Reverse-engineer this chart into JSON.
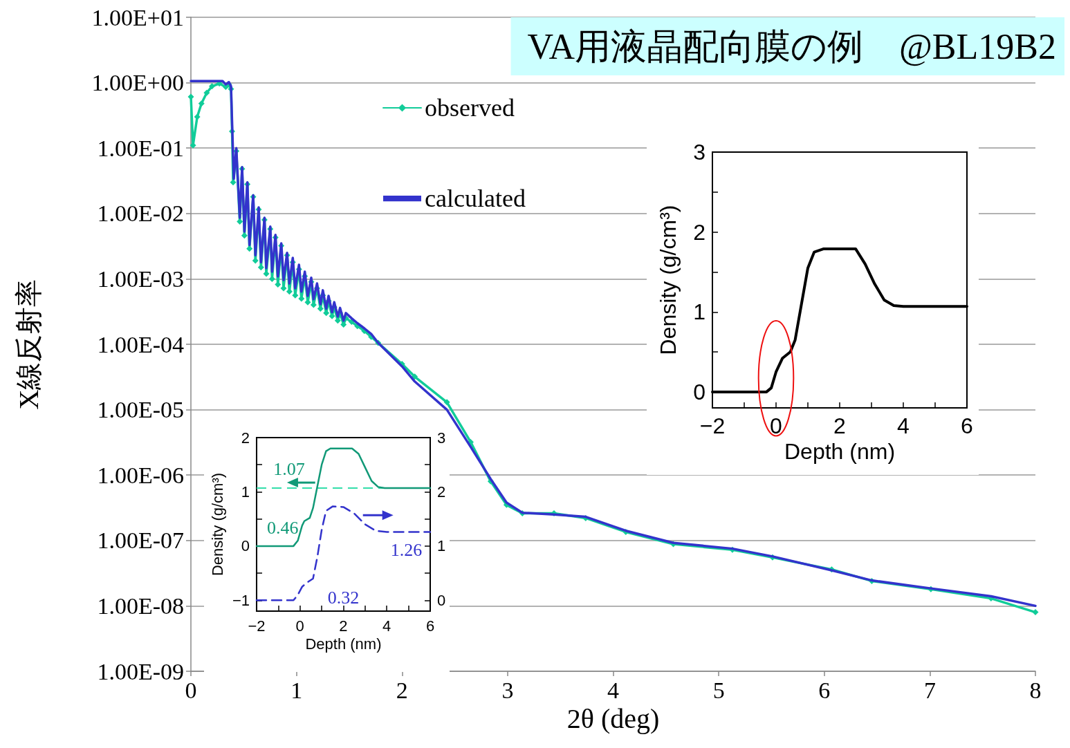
{
  "chart_data": [
    {
      "type": "line",
      "title": "VA用液晶配向膜の例　@BL19B2",
      "xlabel": "2θ (deg)",
      "ylabel": "X線反射率",
      "log": "y",
      "grid": "y",
      "legend": "top",
      "xlim": [
        0,
        8
      ],
      "xticks": [
        0,
        1,
        2,
        3,
        4,
        5,
        6,
        7,
        8
      ],
      "ylim": [
        1e-09,
        10
      ],
      "yticks": [
        {
          "value": 10,
          "label": "1.00E+01"
        },
        {
          "value": 1,
          "label": "1.00E+00"
        },
        {
          "value": 0.1,
          "label": "1.00E-01"
        },
        {
          "value": 0.01,
          "label": "1.00E-02"
        },
        {
          "value": 0.001,
          "label": "1.00E-03"
        },
        {
          "value": 0.0001,
          "label": "1.00E-04"
        },
        {
          "value": 1e-05,
          "label": "1.00E-05"
        },
        {
          "value": 1e-06,
          "label": "1.00E-06"
        },
        {
          "value": 1e-07,
          "label": "1.00E-07"
        },
        {
          "value": 1e-08,
          "label": "1.00E-08"
        },
        {
          "value": 1e-09,
          "label": "1.00E-09"
        }
      ],
      "series": [
        {
          "name": "observed",
          "color": "#11cc99",
          "marker": "diamond",
          "x": [
            0,
            0.02,
            0.06,
            0.1,
            0.15,
            0.2,
            0.27,
            0.33,
            0.36,
            0.38,
            0.39,
            0.4,
            0.43,
            0.463,
            0.485,
            0.507,
            0.535,
            0.555,
            0.59,
            0.611,
            0.642,
            0.664,
            0.697,
            0.714,
            0.752,
            0.769,
            0.801,
            0.824,
            0.856,
            0.878,
            0.911,
            0.933,
            0.965,
            0.988,
            1.024,
            1.047,
            1.079,
            1.107,
            1.14,
            1.162,
            1.195,
            1.227,
            1.25,
            1.282,
            1.304,
            1.337,
            1.358,
            1.391,
            1.413,
            1.446,
            1.468,
            1.522,
            1.577,
            1.643,
            1.708,
            1.774,
            2.0,
            2.12,
            2.425,
            2.65,
            2.84,
            2.99,
            3.14,
            3.44,
            3.74,
            4.12,
            4.57,
            5.13,
            5.51,
            6.07,
            6.45,
            7.01,
            7.58,
            8
          ],
          "values": [
            0.61,
            0.11,
            0.3,
            0.48,
            0.7,
            0.88,
            0.97,
            0.86,
            0.94,
            0.8,
            0.18,
            0.03,
            0.09,
            0.0075,
            0.048,
            0.0046,
            0.028,
            0.0029,
            0.018,
            0.0019,
            0.0115,
            0.0015,
            0.008,
            0.0012,
            0.0058,
            0.001,
            0.0043,
            0.00082,
            0.0032,
            0.00072,
            0.0023,
            0.00064,
            0.0018,
            0.00056,
            0.0014,
            0.0005,
            0.0011,
            0.00044,
            0.0009,
            0.0004,
            0.00072,
            0.00035,
            0.00056,
            0.0003,
            0.00046,
            0.00027,
            0.00037,
            0.00023,
            0.0003,
            0.0002,
            0.00025,
            0.00022,
            0.00019,
            0.00016,
            0.00013,
            0.000105,
            5e-05,
            3.2e-05,
            1.3e-05,
            3.2e-06,
            8e-07,
            3.5e-07,
            2.6e-07,
            2.6e-07,
            2.2e-07,
            1.35e-07,
            8.8e-08,
            7.2e-08,
            5.5e-08,
            3.6e-08,
            2.4e-08,
            1.8e-08,
            1.3e-08,
            8e-09
          ]
        },
        {
          "name": "calculated",
          "color": "#3333cc",
          "marker": "none",
          "x": [
            0,
            0.3,
            0.33,
            0.36,
            0.38,
            0.406,
            0.43,
            0.463,
            0.485,
            0.507,
            0.535,
            0.555,
            0.59,
            0.611,
            0.642,
            0.664,
            0.697,
            0.714,
            0.752,
            0.769,
            0.801,
            0.824,
            0.856,
            0.878,
            0.911,
            0.933,
            0.965,
            0.988,
            1.024,
            1.047,
            1.079,
            1.107,
            1.14,
            1.162,
            1.195,
            1.227,
            1.25,
            1.282,
            1.304,
            1.337,
            1.358,
            1.391,
            1.413,
            1.446,
            1.468,
            1.522,
            1.577,
            1.643,
            1.708,
            1.774,
            2.0,
            2.12,
            2.425,
            2.65,
            2.84,
            2.99,
            3.14,
            3.44,
            3.74,
            4.12,
            4.57,
            5.13,
            5.51,
            6.07,
            6.45,
            7.01,
            7.58,
            8
          ],
          "values": [
            1.06,
            1.06,
            0.94,
            1.02,
            0.88,
            0.034,
            0.1,
            0.0086,
            0.051,
            0.0053,
            0.03,
            0.0033,
            0.019,
            0.0023,
            0.0124,
            0.0018,
            0.0086,
            0.00146,
            0.0063,
            0.00129,
            0.0047,
            0.00109,
            0.0035,
            0.00096,
            0.0025,
            0.00085,
            0.0021,
            0.00072,
            0.00164,
            0.00064,
            0.00129,
            0.00055,
            0.00104,
            0.00049,
            0.00085,
            0.00041,
            0.00067,
            0.00035,
            0.00055,
            0.00031,
            0.00044,
            0.000265,
            0.00036,
            0.00023,
            0.0003,
            0.00025,
            0.00021,
            0.000175,
            0.000144,
            0.000105,
            4.6e-05,
            2.7e-05,
            1e-05,
            2.7e-06,
            8.7e-07,
            3.8e-07,
            2.65e-07,
            2.5e-07,
            2.3e-07,
            1.41e-07,
            9.2e-08,
            7.5e-08,
            5.7e-08,
            3.5e-08,
            2.45e-08,
            1.85e-08,
            1.4e-08,
            1e-08
          ]
        }
      ]
    },
    {
      "type": "line",
      "xlabel": "Depth (nm)",
      "ylabel": "Density (g/cm³)",
      "grid": false,
      "xlim": [
        -2,
        6
      ],
      "xticks": [
        {
          "value": -2,
          "label": "−2"
        },
        {
          "value": -1,
          "label": null
        },
        0,
        {
          "value": 1,
          "label": null
        },
        2,
        {
          "value": 3,
          "label": null
        },
        4,
        {
          "value": 5,
          "label": null
        },
        6
      ],
      "ylim": [
        -1.2,
        2
      ],
      "yticks": [
        {
          "value": -1,
          "label": "−1"
        },
        {
          "value": -0.5,
          "label": null
        },
        0,
        {
          "value": 0.5,
          "label": null
        },
        1,
        {
          "value": 1.5,
          "label": null
        },
        2
      ],
      "y2lim": [
        -0.2,
        3
      ],
      "y2ticks": [
        0,
        {
          "value": 0.5,
          "label": null
        },
        1,
        {
          "value": 1.5,
          "label": null
        },
        2,
        {
          "value": 2.5,
          "label": null
        },
        3
      ],
      "annotations": [
        "1.07",
        "0.46",
        "1.26",
        "0.32"
      ],
      "ref_lines": [
        {
          "axis": "y",
          "value": 1.07,
          "color": "#33ddaa",
          "line_style": "dashed"
        }
      ],
      "series": [
        {
          "color": "#119977",
          "line_style": "solid",
          "x": [
            -2,
            -0.3,
            -0.1,
            0.1,
            0.2,
            0.45,
            0.6,
            0.8,
            1.0,
            1.2,
            1.4,
            2.4,
            2.7,
            3.0,
            3.3,
            3.6,
            3.9,
            6
          ],
          "values": [
            0,
            0,
            0.1,
            0.38,
            0.46,
            0.52,
            0.7,
            1.1,
            1.5,
            1.75,
            1.8,
            1.8,
            1.7,
            1.45,
            1.2,
            1.09,
            1.07,
            1.07
          ]
        },
        {
          "color": "#3333cc",
          "line_style": "dashed",
          "axis": "y2",
          "x": [
            -2,
            -0.3,
            -0.1,
            0.1,
            0.3,
            0.6,
            0.8,
            1.0,
            1.2,
            1.5,
            2.0,
            2.5,
            3.0,
            3.5,
            4.0,
            6
          ],
          "values": [
            0,
            0,
            0.1,
            0.25,
            0.32,
            0.4,
            0.8,
            1.3,
            1.65,
            1.73,
            1.72,
            1.6,
            1.4,
            1.28,
            1.26,
            1.26
          ]
        }
      ]
    },
    {
      "type": "line",
      "xlabel": "Depth (nm)",
      "ylabel": "Density (g/cm³)",
      "grid": false,
      "xlim": [
        -2,
        6
      ],
      "xticks": [
        {
          "value": -2,
          "label": "−2"
        },
        {
          "value": -1,
          "label": null
        },
        0,
        {
          "value": 1,
          "label": null
        },
        2,
        {
          "value": 3,
          "label": null
        },
        4,
        {
          "value": 5,
          "label": null
        },
        6
      ],
      "ylim": [
        -0.2,
        3
      ],
      "yticks": [
        0,
        {
          "value": 0.5,
          "label": null
        },
        1,
        {
          "value": 1.5,
          "label": null
        },
        2,
        {
          "value": 2.5,
          "label": null
        },
        3
      ],
      "series": [
        {
          "color": "#000000",
          "line_style": "solid",
          "x": [
            -2,
            -0.3,
            -0.15,
            0,
            0.2,
            0.45,
            0.6,
            0.8,
            1.0,
            1.2,
            1.5,
            2.5,
            2.8,
            3.1,
            3.4,
            3.7,
            4.0,
            6
          ],
          "values": [
            0,
            0,
            0.05,
            0.25,
            0.42,
            0.5,
            0.65,
            1.1,
            1.55,
            1.75,
            1.79,
            1.79,
            1.6,
            1.35,
            1.15,
            1.08,
            1.07,
            1.07
          ]
        }
      ]
    }
  ]
}
